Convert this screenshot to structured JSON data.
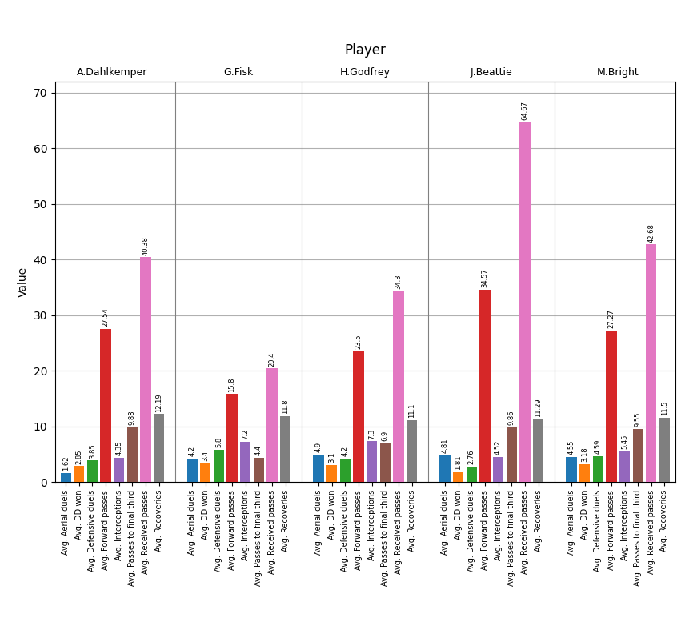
{
  "chart_data": {
    "type": "bar",
    "title": "Player",
    "ylabel": "Value",
    "categories": [
      "Avg. Aerial duels",
      "Avg. DD won",
      "Avg. Defensive duels",
      "Avg. Forward passes",
      "Avg. Interceptions",
      "Avg. Passes to final third",
      "Avg. Received passes",
      "Avg. Recoveries"
    ],
    "series": [
      {
        "name": "A.Dahlkemper",
        "values": [
          1.62,
          2.85,
          3.85,
          27.54,
          4.35,
          9.88,
          40.38,
          12.19
        ]
      },
      {
        "name": "G.Fisk",
        "values": [
          4.2,
          3.4,
          5.8,
          15.8,
          7.2,
          4.4,
          20.4,
          11.8
        ]
      },
      {
        "name": "H.Godfrey",
        "values": [
          4.9,
          3.1,
          4.2,
          23.5,
          7.3,
          6.9,
          34.3,
          11.1
        ]
      },
      {
        "name": "J.Beattie",
        "values": [
          4.81,
          1.81,
          2.76,
          34.57,
          4.52,
          9.86,
          64.67,
          11.29
        ]
      },
      {
        "name": "M.Bright",
        "values": [
          4.55,
          3.18,
          4.59,
          27.27,
          5.45,
          9.55,
          42.68,
          11.5
        ]
      }
    ],
    "ylim": [
      0,
      72
    ],
    "yticks": [
      0,
      10,
      20,
      30,
      40,
      50,
      60,
      70
    ],
    "grid": true,
    "data_labels": true
  }
}
